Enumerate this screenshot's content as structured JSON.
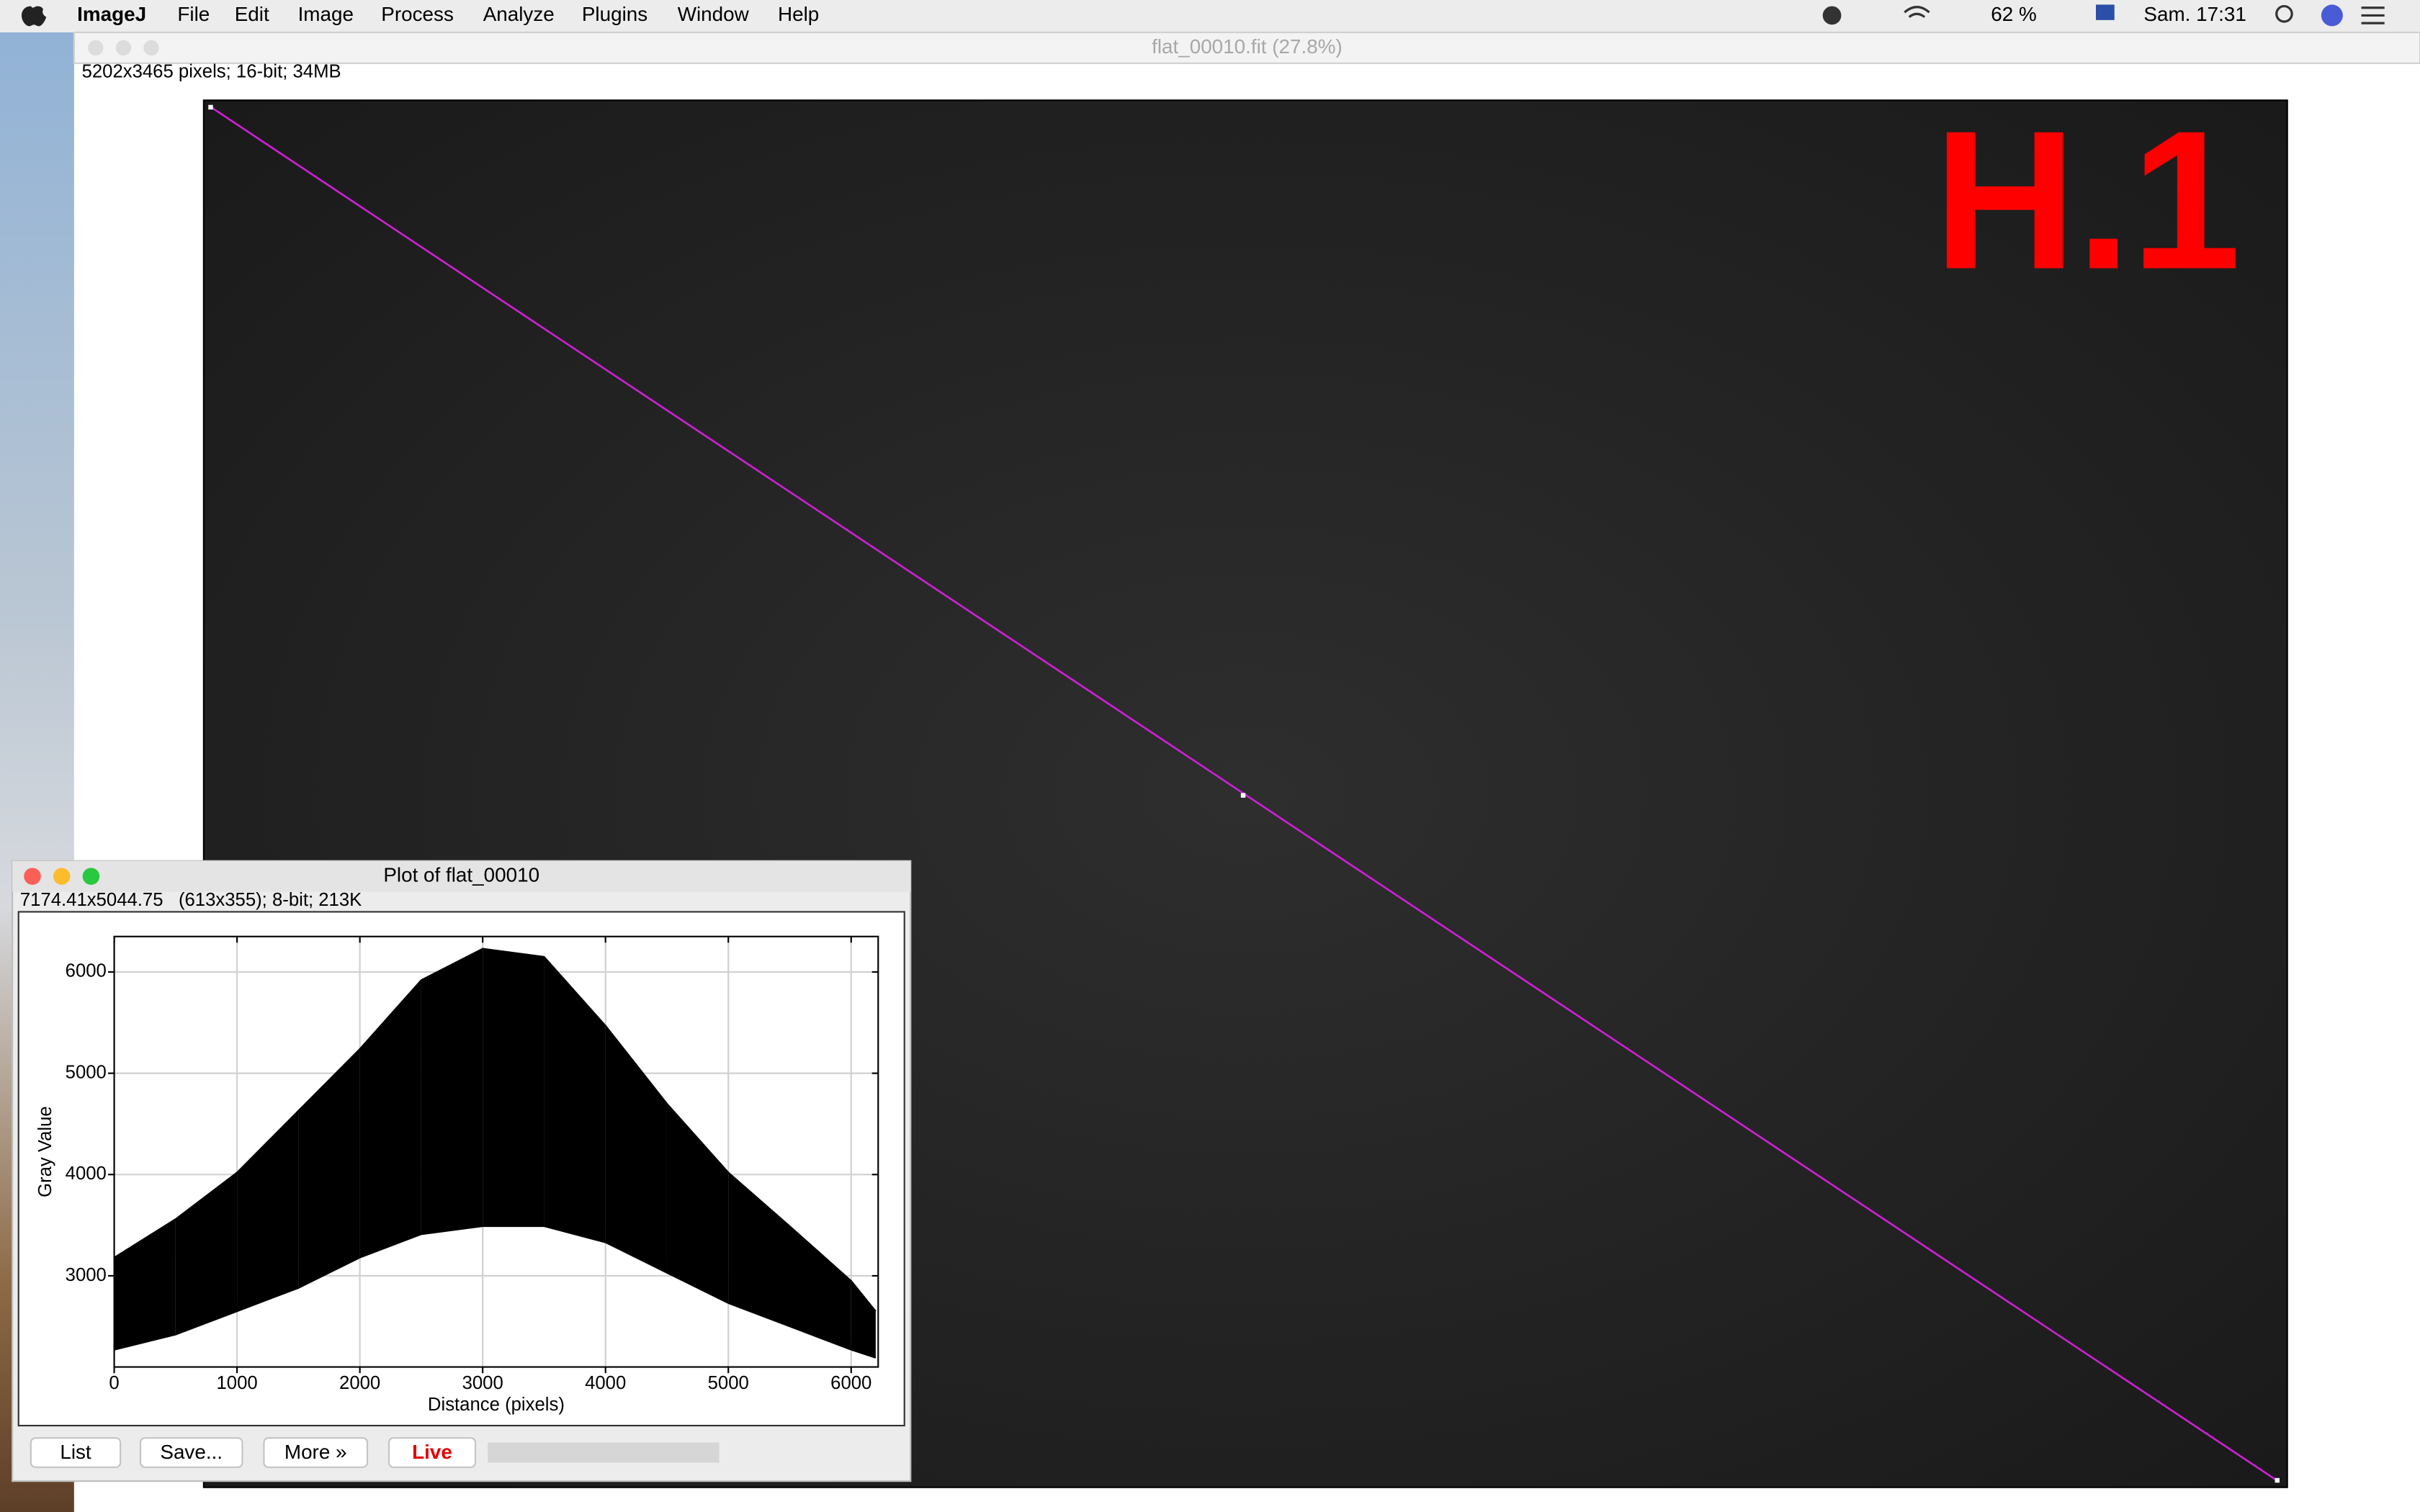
{
  "menubar": {
    "app": "ImageJ",
    "items": [
      "File",
      "Edit",
      "Image",
      "Process",
      "Analyze",
      "Plugins",
      "Window",
      "Help"
    ],
    "battery": "62 %",
    "clock": "Sam. 17:31"
  },
  "image_window": {
    "title": "flat_00010.fit (27.8%)",
    "info": "5202x3465 pixels; 16-bit; 34MB",
    "overlay_label": "H.1"
  },
  "plot_window": {
    "title": "Plot of flat_00010",
    "info": "7174.41x5044.75   (613x355); 8-bit; 213K",
    "buttons": [
      "List",
      "Save...",
      "More »",
      "Live"
    ]
  },
  "chart_data": {
    "type": "band",
    "x_label": "Distance (pixels)",
    "y_label": "Gray Value",
    "x": [
      0,
      500,
      1000,
      1500,
      2000,
      2500,
      3000,
      3500,
      4000,
      4500,
      5000,
      5500,
      6000,
      6200
    ],
    "series": [
      {
        "color": "#000000",
        "values": [
          3180,
          3560,
          4020,
          4630,
          5240,
          5920,
          6230,
          6150,
          5470,
          4700,
          4020,
          3490,
          2950,
          2650
        ]
      },
      {
        "color": "#000000",
        "values": [
          2270,
          2420,
          2650,
          2880,
          3180,
          3410,
          3490,
          3490,
          3330,
          3030,
          2730,
          2500,
          2270,
          2190
        ]
      }
    ],
    "xlim": [
      0,
      6220
    ],
    "ylim": [
      2100,
      6350
    ],
    "xticks": [
      0,
      1000,
      2000,
      3000,
      4000,
      5000,
      6000
    ],
    "yticks": [
      3000,
      4000,
      5000,
      6000
    ],
    "grid": true
  }
}
